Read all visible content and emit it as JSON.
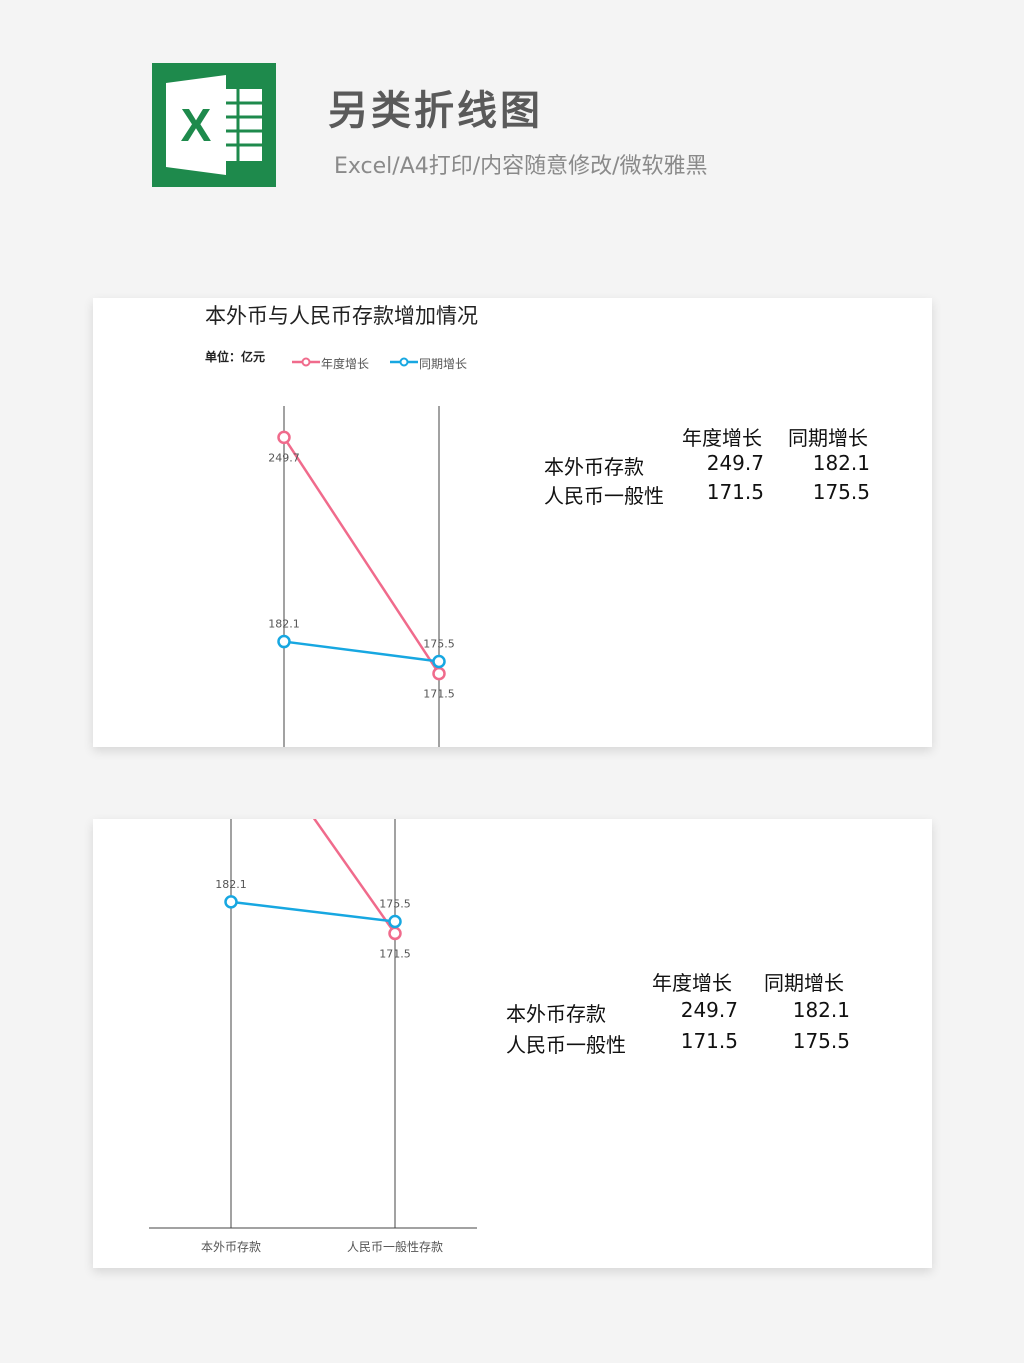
{
  "header": {
    "logo_letter": "X",
    "title": "另类折线图",
    "subtitle": "Excel/A4打印/内容随意修改/微软雅黑"
  },
  "colors": {
    "logo_green": "#1e8a4c",
    "series_annual": "#f06b8c",
    "series_same_period": "#17a7e1",
    "axis_line": "#444444"
  },
  "chart_data": [
    {
      "type": "line",
      "title": "本外币与人民币存款增加情况",
      "unit": "单位：亿元",
      "legend_position": "top",
      "categories": [
        "本外币存款",
        "人民币一般性存款"
      ],
      "series": [
        {
          "name": "年度增长",
          "values": [
            249.7,
            171.5
          ]
        },
        {
          "name": "同期增长",
          "values": [
            182.1,
            175.5
          ]
        }
      ]
    },
    {
      "type": "line",
      "categories": [
        "本外币存款",
        "人民币一般性存款"
      ],
      "x_tick_labels": [
        "本外币存款",
        "人民币一般性存款"
      ],
      "series": [
        {
          "values": [
            249.7,
            171.5
          ]
        },
        {
          "values": [
            182.1,
            175.5
          ]
        }
      ]
    }
  ],
  "table": {
    "headers": [
      "年度增长",
      "同期增长"
    ],
    "rows": [
      {
        "label": "本外币存款",
        "values": [
          "249.7",
          "182.1"
        ]
      },
      {
        "label": "人民币一般性",
        "values": [
          "171.5",
          "175.5"
        ]
      }
    ]
  }
}
